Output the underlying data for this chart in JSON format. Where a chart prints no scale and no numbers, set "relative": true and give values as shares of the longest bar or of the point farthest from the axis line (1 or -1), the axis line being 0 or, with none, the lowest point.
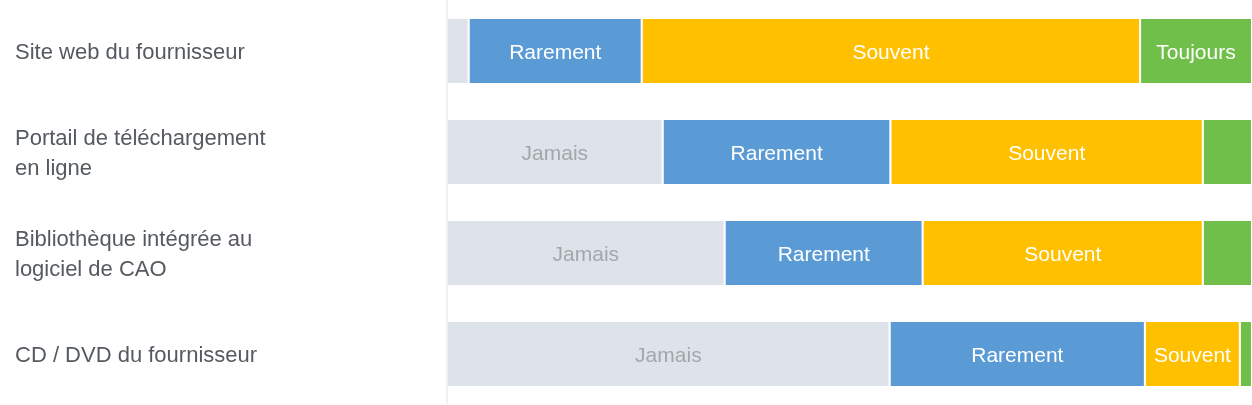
{
  "chart_data": {
    "type": "bar",
    "orientation": "horizontal",
    "stacked": true,
    "relative": true,
    "categories": [
      "Site web du fournisseur",
      "Portail de téléchargement en ligne",
      "Bibliothèque intégrée au logiciel de CAO",
      "CD / DVD du fournisseur"
    ],
    "series": [
      {
        "name": "Jamais",
        "color": "#dee3ea",
        "values": [
          0.027,
          0.268,
          0.345,
          0.55
        ]
      },
      {
        "name": "Rarement",
        "color": "#5b9bd5",
        "values": [
          0.215,
          0.283,
          0.246,
          0.317
        ]
      },
      {
        "name": "Souvent",
        "color": "#ffc000",
        "values": [
          0.619,
          0.388,
          0.348,
          0.118
        ]
      },
      {
        "name": "Toujours",
        "color": "#70bf4b",
        "values": [
          0.139,
          0.061,
          0.061,
          0.015
        ]
      }
    ]
  }
}
